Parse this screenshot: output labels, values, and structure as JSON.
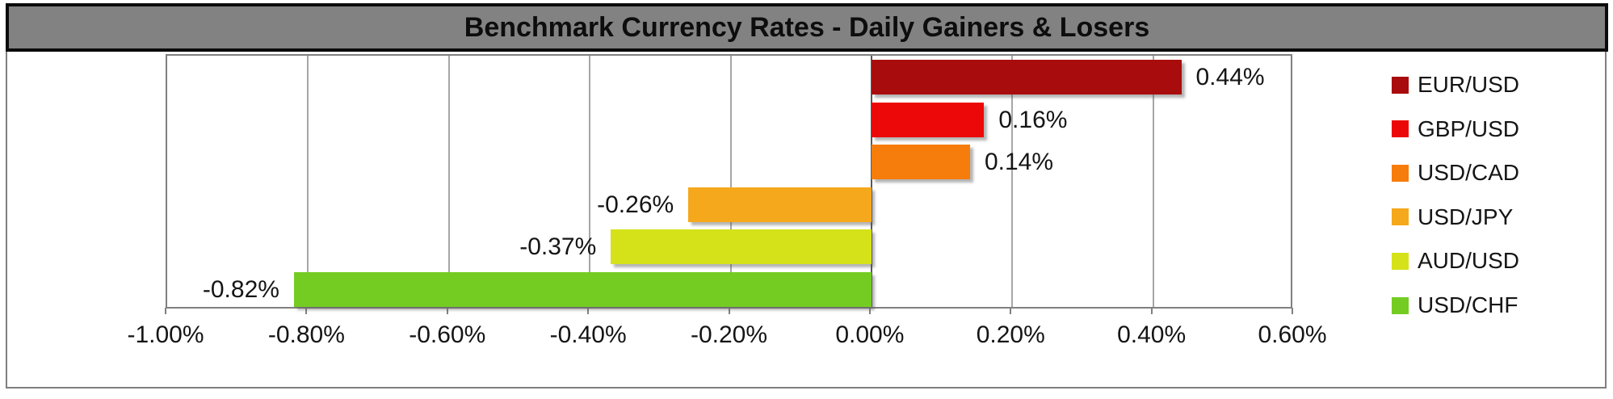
{
  "title": "Benchmark Currency Rates - Daily Gainers & Losers",
  "chart_data": {
    "type": "bar",
    "orientation": "horizontal",
    "title": "Benchmark Currency Rates - Daily Gainers & Losers",
    "categories": [
      "EUR/USD",
      "GBP/USD",
      "USD/CAD",
      "USD/JPY",
      "AUD/USD",
      "USD/CHF"
    ],
    "values": [
      0.44,
      0.16,
      0.14,
      -0.26,
      -0.37,
      -0.82
    ],
    "data_labels": [
      "0.44%",
      "0.16%",
      "0.14%",
      "-0.26%",
      "-0.37%",
      "-0.82%"
    ],
    "bar_colors": [
      "#A90C0C",
      "#EC0708",
      "#F67D0B",
      "#F5A81C",
      "#D5E219",
      "#74CC22"
    ],
    "xlabel": "",
    "ylabel": "",
    "xlim": [
      -1.0,
      0.6
    ],
    "tick_step": 0.2,
    "x_tick_labels": [
      "-1.00%",
      "-0.80%",
      "-0.60%",
      "-0.40%",
      "-0.20%",
      "0.00%",
      "0.20%",
      "0.40%",
      "0.60%"
    ],
    "grid": true,
    "legend_position": "right",
    "legend_entries": [
      "EUR/USD",
      "GBP/USD",
      "USD/CAD",
      "USD/JPY",
      "AUD/USD",
      "USD/CHF"
    ]
  },
  "colors": {
    "title_bg": "#828282",
    "title_text": "#0d0d0d",
    "grid": "#a6a6a6",
    "zero_axis": "#595959",
    "tick": "#808080",
    "label_text": "#151515"
  }
}
